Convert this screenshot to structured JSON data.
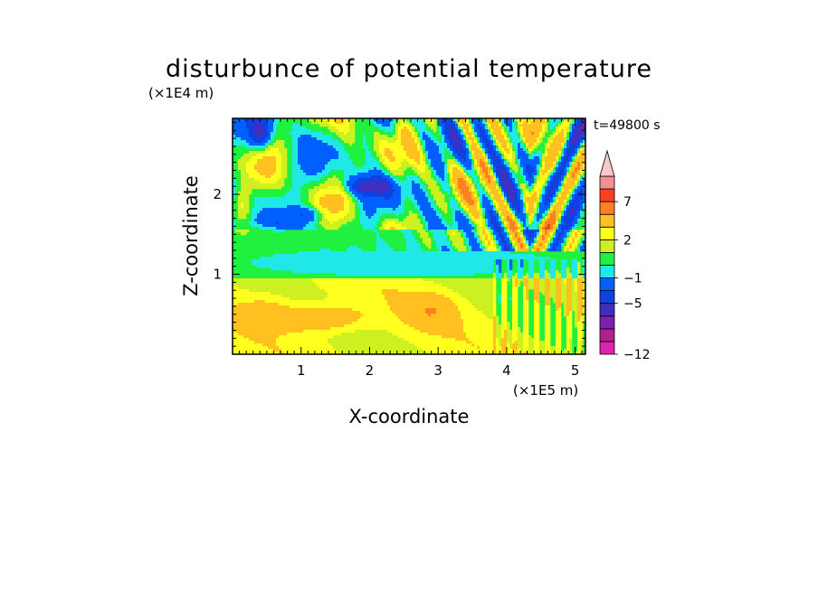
{
  "chart_data": {
    "type": "heatmap",
    "title": "disturbunce of potential temperature",
    "xlabel": "X-coordinate",
    "ylabel": "Z-coordinate",
    "x_scale_label": "(×1E5 m)",
    "y_scale_label": "(×1E4 m)",
    "annotation": "t=49800 s",
    "xlim": [
      0,
      5.15
    ],
    "ylim": [
      0,
      2.95
    ],
    "x_ticks": [
      "1",
      "2",
      "3",
      "4",
      "5"
    ],
    "y_ticks": [
      "1",
      "2"
    ],
    "colorbar": {
      "extend": "max",
      "levels": [
        -12,
        -11,
        -9,
        -7,
        -5,
        -3,
        -1,
        0,
        1,
        2,
        3,
        5,
        7,
        9,
        11
      ],
      "colors": [
        "#e020b0",
        "#b02090",
        "#8020b0",
        "#4030c0",
        "#1040e0",
        "#0060ff",
        "#20e8e8",
        "#20f040",
        "#ccf020",
        "#ffff20",
        "#ffc020",
        "#ff8020",
        "#ff4020",
        "#f09090",
        "#f8c8c8"
      ],
      "labels": [
        "-12",
        "-5",
        "-1",
        "2",
        "7"
      ],
      "label_levels": [
        -12,
        -5,
        -1,
        2,
        7
      ]
    },
    "field_features": [
      {
        "kind": "layer",
        "z_range": [
          0.95,
          1.6
        ],
        "band": "green",
        "description_value": 0.5
      },
      {
        "kind": "layer",
        "z_range": [
          0,
          0.95
        ],
        "band": "yellow-orange",
        "description_value": 3
      },
      {
        "kind": "v_wave_vertex",
        "x": 4.35,
        "z": 1.3
      },
      {
        "kind": "max_region",
        "x_range": [
          0.6,
          2.5
        ],
        "z_range": [
          0.3,
          0.6
        ],
        "value": 5
      }
    ]
  }
}
